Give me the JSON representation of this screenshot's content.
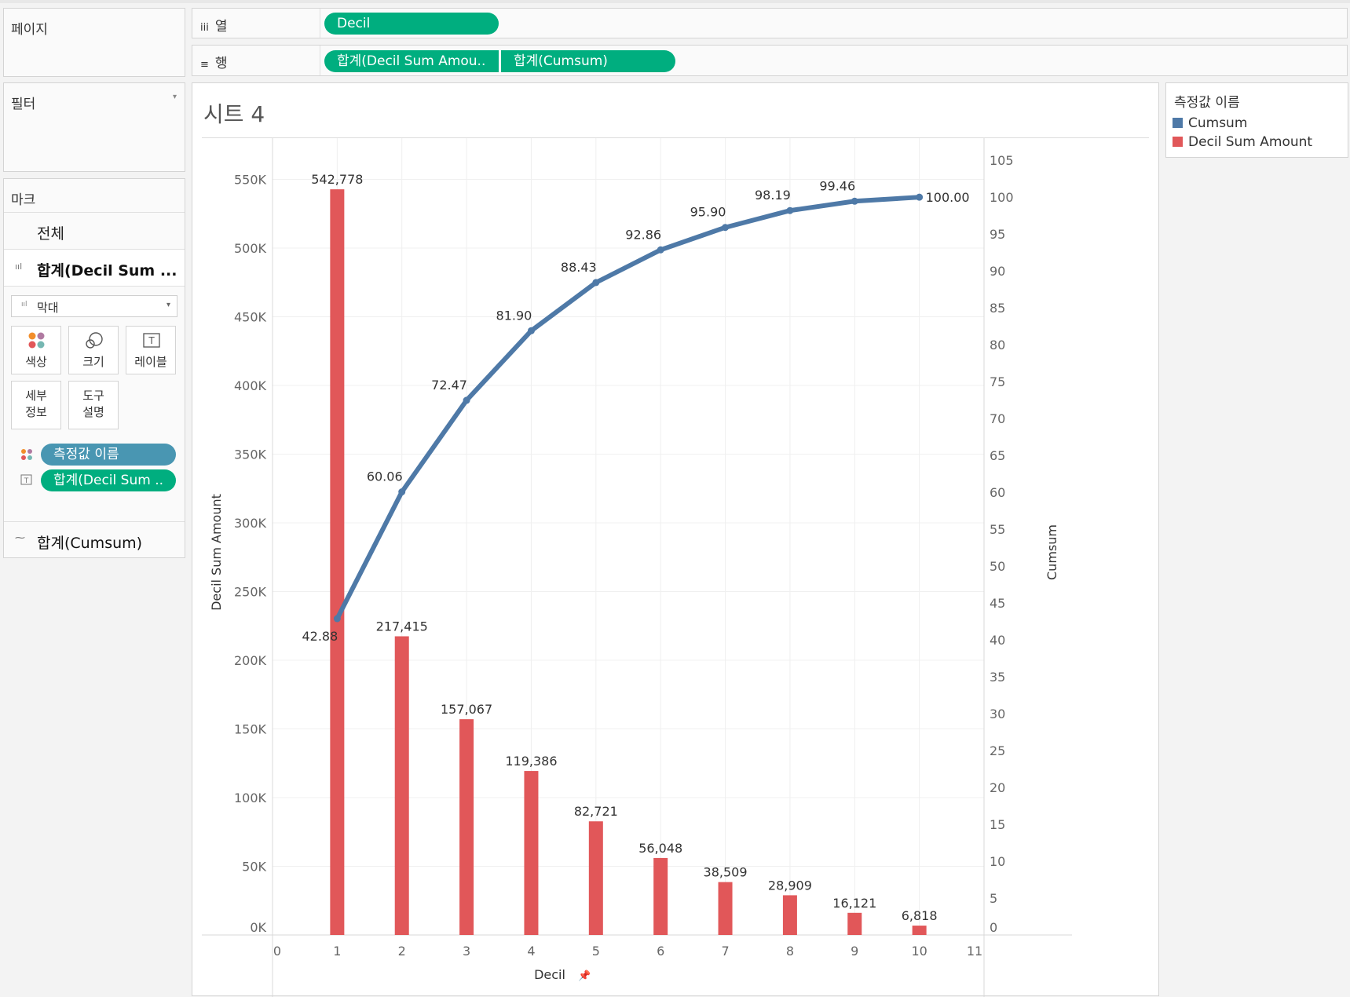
{
  "pages_panel": {
    "title": "페이지"
  },
  "filters_panel": {
    "title": "필터"
  },
  "marks_panel": {
    "title": "마크",
    "all_label": "전체",
    "measure1_label": "합계(Decil Sum ...",
    "mark_type": "막대",
    "buttons": {
      "color": "색상",
      "size": "크기",
      "label": "레이블",
      "detail": "세부\n정보",
      "tooltip": "도구\n설명"
    },
    "pills": {
      "measure_names": "측정값 이름",
      "label_pill": "합계(Decil Sum .."
    },
    "measure2_label": "합계(Cumsum)"
  },
  "shelves": {
    "columns": {
      "label": "열",
      "pills": [
        "Decil"
      ]
    },
    "rows": {
      "label": "행",
      "pills": [
        "합계(Decil Sum Amou..",
        "합계(Cumsum)"
      ]
    }
  },
  "sheet_title": "시트 4",
  "legend": {
    "title": "측정값 이름",
    "items": [
      {
        "name": "Cumsum",
        "color": "#4e79a7"
      },
      {
        "name": "Decil Sum Amount",
        "color": "#e15759"
      }
    ]
  },
  "chart_data": {
    "type": "bar",
    "xlabel": "Decil",
    "ylabel": "Decil Sum Amount",
    "y2label": "Cumsum",
    "xlim": [
      0,
      11
    ],
    "ylim": [
      0,
      580000
    ],
    "y2lim": [
      0,
      108
    ],
    "x_ticks": [
      "0",
      "1",
      "2",
      "3",
      "4",
      "5",
      "6",
      "7",
      "8",
      "9",
      "10",
      "11"
    ],
    "y_ticks": [
      {
        "value": 0,
        "label": "0K"
      },
      {
        "value": 50000,
        "label": "50K"
      },
      {
        "value": 100000,
        "label": "100K"
      },
      {
        "value": 150000,
        "label": "150K"
      },
      {
        "value": 200000,
        "label": "200K"
      },
      {
        "value": 250000,
        "label": "250K"
      },
      {
        "value": 300000,
        "label": "300K"
      },
      {
        "value": 350000,
        "label": "350K"
      },
      {
        "value": 400000,
        "label": "400K"
      },
      {
        "value": 450000,
        "label": "450K"
      },
      {
        "value": 500000,
        "label": "500K"
      },
      {
        "value": 550000,
        "label": "550K"
      }
    ],
    "y2_ticks": [
      "0",
      "5",
      "10",
      "15",
      "20",
      "25",
      "30",
      "35",
      "40",
      "45",
      "50",
      "55",
      "60",
      "65",
      "70",
      "75",
      "80",
      "85",
      "90",
      "95",
      "100",
      "105"
    ],
    "categories": [
      1,
      2,
      3,
      4,
      5,
      6,
      7,
      8,
      9,
      10
    ],
    "series": [
      {
        "name": "Decil Sum Amount",
        "type": "bar",
        "color": "#e15759",
        "values": [
          542778,
          217415,
          157067,
          119386,
          82721,
          56048,
          38509,
          28909,
          16121,
          6818
        ],
        "labels": [
          "542,778",
          "217,415",
          "157,067",
          "119,386",
          "82,721",
          "56,048",
          "38,509",
          "28,909",
          "16,121",
          "6,818"
        ]
      },
      {
        "name": "Cumsum",
        "type": "line",
        "color": "#4e79a7",
        "values": [
          42.88,
          60.06,
          72.47,
          81.9,
          88.43,
          92.86,
          95.9,
          98.19,
          99.46,
          100.0
        ],
        "labels": [
          "42.88",
          "60.06",
          "72.47",
          "81.90",
          "88.43",
          "92.86",
          "95.90",
          "98.19",
          "99.46",
          "100.00"
        ]
      }
    ],
    "grid": true,
    "legend_position": "right"
  }
}
